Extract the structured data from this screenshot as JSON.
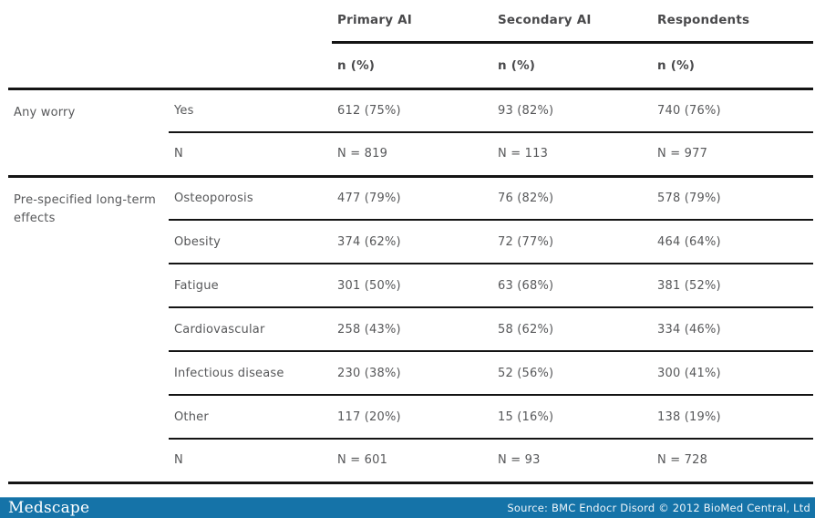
{
  "table": {
    "columns": [
      {
        "label": "Primary AI",
        "sub": "n (%)"
      },
      {
        "label": "Secondary AI",
        "sub": "n (%)"
      },
      {
        "label": "Respondents",
        "sub": "n (%)"
      }
    ],
    "sections": [
      {
        "label": "Any worry",
        "rows": [
          {
            "label": "Yes",
            "values": [
              "612 (75%)",
              "93 (82%)",
              "740 (76%)"
            ]
          },
          {
            "label": "N",
            "values": [
              "N = 819",
              "N = 113",
              "N = 977"
            ]
          }
        ]
      },
      {
        "label": "Pre-specified long-term effects",
        "rows": [
          {
            "label": "Osteoporosis",
            "values": [
              "477 (79%)",
              "76 (82%)",
              "578 (79%)"
            ]
          },
          {
            "label": "Obesity",
            "values": [
              "374 (62%)",
              "72 (77%)",
              "464 (64%)"
            ]
          },
          {
            "label": "Fatigue",
            "values": [
              "301 (50%)",
              "63 (68%)",
              "381 (52%)"
            ]
          },
          {
            "label": "Cardiovascular",
            "values": [
              "258 (43%)",
              "58 (62%)",
              "334 (46%)"
            ]
          },
          {
            "label": "Infectious disease",
            "values": [
              "230 (38%)",
              "52 (56%)",
              "300 (41%)"
            ]
          },
          {
            "label": "Other",
            "values": [
              "117 (20%)",
              "15 (16%)",
              "138 (19%)"
            ]
          },
          {
            "label": "N",
            "values": [
              "N = 601",
              "N = 93",
              "N = 728"
            ]
          }
        ]
      }
    ]
  },
  "footer": {
    "brand": "Medscape",
    "source": "Source: BMC Endocr Disord © 2012 BioMed Central, Ltd",
    "bar_color": "#1573a8"
  }
}
